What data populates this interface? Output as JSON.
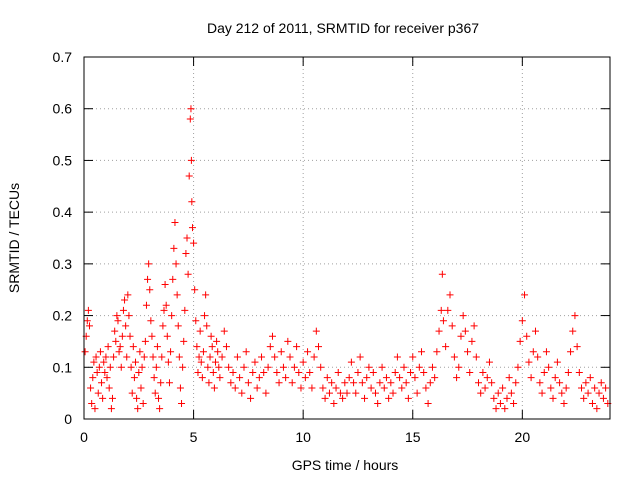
{
  "chart_data": {
    "type": "scatter",
    "title": "Day 212 of 2011, SRMTID for receiver p367",
    "xlabel": "GPS time / hours",
    "ylabel": "SRMTID / TECUs",
    "xlim": [
      0,
      24
    ],
    "ylim": [
      0,
      0.7
    ],
    "x_ticks": [
      0,
      5,
      10,
      15,
      20
    ],
    "y_ticks": [
      0,
      0.1,
      0.2,
      0.3,
      0.4,
      0.5,
      0.6,
      0.7
    ],
    "x_tick_labels": [
      "0",
      "5",
      "10",
      "15",
      "20"
    ],
    "y_tick_labels": [
      "0",
      "0.1",
      "0.2",
      "0.3",
      "0.4",
      "0.5",
      "0.6",
      "0.7"
    ],
    "grid": true,
    "marker": "+",
    "color": "#ff0000",
    "series": [
      {
        "name": "SRMTID",
        "points": [
          [
            0.05,
            0.13
          ],
          [
            0.1,
            0.16
          ],
          [
            0.15,
            0.19
          ],
          [
            0.2,
            0.21
          ],
          [
            0.25,
            0.18
          ],
          [
            0.3,
            0.06
          ],
          [
            0.35,
            0.03
          ],
          [
            0.4,
            0.08
          ],
          [
            0.45,
            0.11
          ],
          [
            0.5,
            0.02
          ],
          [
            0.55,
            0.12
          ],
          [
            0.6,
            0.09
          ],
          [
            0.65,
            0.05
          ],
          [
            0.7,
            0.1
          ],
          [
            0.75,
            0.13
          ],
          [
            0.8,
            0.07
          ],
          [
            0.85,
            0.04
          ],
          [
            0.9,
            0.11
          ],
          [
            0.95,
            0.09
          ],
          [
            1.0,
            0.12
          ],
          [
            1.05,
            0.08
          ],
          [
            1.1,
            0.14
          ],
          [
            1.15,
            0.06
          ],
          [
            1.2,
            0.1
          ],
          [
            1.25,
            0.02
          ],
          [
            1.3,
            0.04
          ],
          [
            1.35,
            0.12
          ],
          [
            1.4,
            0.17
          ],
          [
            1.45,
            0.15
          ],
          [
            1.5,
            0.2
          ],
          [
            1.55,
            0.19
          ],
          [
            1.6,
            0.13
          ],
          [
            1.65,
            0.14
          ],
          [
            1.7,
            0.1
          ],
          [
            1.75,
            0.16
          ],
          [
            1.8,
            0.21
          ],
          [
            1.85,
            0.23
          ],
          [
            1.9,
            0.18
          ],
          [
            1.95,
            0.12
          ],
          [
            2.0,
            0.24
          ],
          [
            2.05,
            0.2
          ],
          [
            2.1,
            0.16
          ],
          [
            2.15,
            0.1
          ],
          [
            2.2,
            0.05
          ],
          [
            2.25,
            0.14
          ],
          [
            2.3,
            0.08
          ],
          [
            2.35,
            0.11
          ],
          [
            2.4,
            0.04
          ],
          [
            2.45,
            0.02
          ],
          [
            2.5,
            0.09
          ],
          [
            2.55,
            0.13
          ],
          [
            2.6,
            0.06
          ],
          [
            2.65,
            0.1
          ],
          [
            2.7,
            0.03
          ],
          [
            2.75,
            0.12
          ],
          [
            2.8,
            0.15
          ],
          [
            2.85,
            0.22
          ],
          [
            2.9,
            0.27
          ],
          [
            2.95,
            0.3
          ],
          [
            3.0,
            0.25
          ],
          [
            3.05,
            0.19
          ],
          [
            3.1,
            0.16
          ],
          [
            3.15,
            0.12
          ],
          [
            3.2,
            0.08
          ],
          [
            3.25,
            0.05
          ],
          [
            3.3,
            0.1
          ],
          [
            3.35,
            0.14
          ],
          [
            3.4,
            0.04
          ],
          [
            3.45,
            0.02
          ],
          [
            3.5,
            0.07
          ],
          [
            3.55,
            0.12
          ],
          [
            3.6,
            0.18
          ],
          [
            3.65,
            0.21
          ],
          [
            3.7,
            0.26
          ],
          [
            3.75,
            0.22
          ],
          [
            3.8,
            0.16
          ],
          [
            3.85,
            0.11
          ],
          [
            3.9,
            0.07
          ],
          [
            3.95,
            0.13
          ],
          [
            4.0,
            0.2
          ],
          [
            4.05,
            0.27
          ],
          [
            4.1,
            0.33
          ],
          [
            4.15,
            0.38
          ],
          [
            4.2,
            0.3
          ],
          [
            4.25,
            0.24
          ],
          [
            4.3,
            0.18
          ],
          [
            4.35,
            0.12
          ],
          [
            4.4,
            0.06
          ],
          [
            4.45,
            0.03
          ],
          [
            4.5,
            0.1
          ],
          [
            4.55,
            0.15
          ],
          [
            4.6,
            0.21
          ],
          [
            4.65,
            0.32
          ],
          [
            4.7,
            0.35
          ],
          [
            4.75,
            0.28
          ],
          [
            4.8,
            0.47
          ],
          [
            4.85,
            0.58
          ],
          [
            4.88,
            0.6
          ],
          [
            4.9,
            0.5
          ],
          [
            4.92,
            0.42
          ],
          [
            4.95,
            0.37
          ],
          [
            5.0,
            0.34
          ],
          [
            5.05,
            0.25
          ],
          [
            5.1,
            0.19
          ],
          [
            5.15,
            0.14
          ],
          [
            5.2,
            0.09
          ],
          [
            5.25,
            0.12
          ],
          [
            5.3,
            0.17
          ],
          [
            5.35,
            0.11
          ],
          [
            5.4,
            0.08
          ],
          [
            5.45,
            0.13
          ],
          [
            5.5,
            0.2
          ],
          [
            5.55,
            0.24
          ],
          [
            5.6,
            0.18
          ],
          [
            5.65,
            0.1
          ],
          [
            5.7,
            0.07
          ],
          [
            5.75,
            0.12
          ],
          [
            5.8,
            0.16
          ],
          [
            5.85,
            0.14
          ],
          [
            5.9,
            0.09
          ],
          [
            5.95,
            0.06
          ],
          [
            6.0,
            0.11
          ],
          [
            6.05,
            0.15
          ],
          [
            6.1,
            0.13
          ],
          [
            6.15,
            0.1
          ],
          [
            6.2,
            0.08
          ],
          [
            6.3,
            0.12
          ],
          [
            6.4,
            0.17
          ],
          [
            6.5,
            0.14
          ],
          [
            6.6,
            0.1
          ],
          [
            6.7,
            0.07
          ],
          [
            6.8,
            0.09
          ],
          [
            6.9,
            0.06
          ],
          [
            7.0,
            0.12
          ],
          [
            7.1,
            0.08
          ],
          [
            7.2,
            0.05
          ],
          [
            7.3,
            0.1
          ],
          [
            7.4,
            0.13
          ],
          [
            7.5,
            0.07
          ],
          [
            7.6,
            0.04
          ],
          [
            7.7,
            0.09
          ],
          [
            7.8,
            0.11
          ],
          [
            7.9,
            0.06
          ],
          [
            8.0,
            0.08
          ],
          [
            8.1,
            0.12
          ],
          [
            8.2,
            0.09
          ],
          [
            8.3,
            0.05
          ],
          [
            8.4,
            0.1
          ],
          [
            8.5,
            0.14
          ],
          [
            8.6,
            0.16
          ],
          [
            8.7,
            0.12
          ],
          [
            8.8,
            0.09
          ],
          [
            8.9,
            0.07
          ],
          [
            9.0,
            0.13
          ],
          [
            9.1,
            0.1
          ],
          [
            9.2,
            0.08
          ],
          [
            9.3,
            0.15
          ],
          [
            9.4,
            0.12
          ],
          [
            9.5,
            0.07
          ],
          [
            9.6,
            0.1
          ],
          [
            9.7,
            0.14
          ],
          [
            9.8,
            0.09
          ],
          [
            9.9,
            0.06
          ],
          [
            10.0,
            0.11
          ],
          [
            10.1,
            0.08
          ],
          [
            10.2,
            0.13
          ],
          [
            10.3,
            0.09
          ],
          [
            10.4,
            0.06
          ],
          [
            10.5,
            0.12
          ],
          [
            10.6,
            0.17
          ],
          [
            10.7,
            0.14
          ],
          [
            10.8,
            0.1
          ],
          [
            10.9,
            0.06
          ],
          [
            11.0,
            0.04
          ],
          [
            11.1,
            0.08
          ],
          [
            11.2,
            0.05
          ],
          [
            11.3,
            0.07
          ],
          [
            11.4,
            0.03
          ],
          [
            11.5,
            0.06
          ],
          [
            11.6,
            0.09
          ],
          [
            11.7,
            0.05
          ],
          [
            11.8,
            0.04
          ],
          [
            11.9,
            0.07
          ],
          [
            12.0,
            0.05
          ],
          [
            12.1,
            0.08
          ],
          [
            12.2,
            0.11
          ],
          [
            12.3,
            0.07
          ],
          [
            12.4,
            0.05
          ],
          [
            12.5,
            0.09
          ],
          [
            12.6,
            0.12
          ],
          [
            12.7,
            0.07
          ],
          [
            12.8,
            0.04
          ],
          [
            12.9,
            0.08
          ],
          [
            13.0,
            0.1
          ],
          [
            13.1,
            0.06
          ],
          [
            13.2,
            0.09
          ],
          [
            13.3,
            0.05
          ],
          [
            13.4,
            0.03
          ],
          [
            13.5,
            0.07
          ],
          [
            13.6,
            0.1
          ],
          [
            13.7,
            0.06
          ],
          [
            13.8,
            0.08
          ],
          [
            13.9,
            0.04
          ],
          [
            14.0,
            0.07
          ],
          [
            14.1,
            0.05
          ],
          [
            14.2,
            0.09
          ],
          [
            14.3,
            0.12
          ],
          [
            14.4,
            0.08
          ],
          [
            14.5,
            0.06
          ],
          [
            14.6,
            0.1
          ],
          [
            14.7,
            0.07
          ],
          [
            14.8,
            0.04
          ],
          [
            14.9,
            0.09
          ],
          [
            15.0,
            0.12
          ],
          [
            15.1,
            0.08
          ],
          [
            15.2,
            0.05
          ],
          [
            15.3,
            0.1
          ],
          [
            15.4,
            0.13
          ],
          [
            15.5,
            0.09
          ],
          [
            15.6,
            0.06
          ],
          [
            15.7,
            0.03
          ],
          [
            15.8,
            0.07
          ],
          [
            15.9,
            0.1
          ],
          [
            16.0,
            0.08
          ],
          [
            16.1,
            0.13
          ],
          [
            16.2,
            0.17
          ],
          [
            16.3,
            0.21
          ],
          [
            16.35,
            0.28
          ],
          [
            16.4,
            0.19
          ],
          [
            16.5,
            0.14
          ],
          [
            16.6,
            0.21
          ],
          [
            16.7,
            0.24
          ],
          [
            16.8,
            0.18
          ],
          [
            16.9,
            0.12
          ],
          [
            17.0,
            0.08
          ],
          [
            17.1,
            0.1
          ],
          [
            17.2,
            0.16
          ],
          [
            17.3,
            0.2
          ],
          [
            17.4,
            0.17
          ],
          [
            17.5,
            0.13
          ],
          [
            17.6,
            0.09
          ],
          [
            17.7,
            0.15
          ],
          [
            17.8,
            0.18
          ],
          [
            17.9,
            0.12
          ],
          [
            18.0,
            0.07
          ],
          [
            18.1,
            0.05
          ],
          [
            18.2,
            0.09
          ],
          [
            18.3,
            0.06
          ],
          [
            18.4,
            0.08
          ],
          [
            18.5,
            0.11
          ],
          [
            18.6,
            0.07
          ],
          [
            18.7,
            0.04
          ],
          [
            18.8,
            0.02
          ],
          [
            18.9,
            0.05
          ],
          [
            19.0,
            0.03
          ],
          [
            19.1,
            0.06
          ],
          [
            19.2,
            0.02
          ],
          [
            19.3,
            0.04
          ],
          [
            19.4,
            0.08
          ],
          [
            19.5,
            0.05
          ],
          [
            19.6,
            0.03
          ],
          [
            19.7,
            0.07
          ],
          [
            19.8,
            0.1
          ],
          [
            19.9,
            0.15
          ],
          [
            20.0,
            0.19
          ],
          [
            20.1,
            0.24
          ],
          [
            20.2,
            0.16
          ],
          [
            20.3,
            0.11
          ],
          [
            20.4,
            0.08
          ],
          [
            20.5,
            0.13
          ],
          [
            20.6,
            0.17
          ],
          [
            20.7,
            0.12
          ],
          [
            20.8,
            0.07
          ],
          [
            20.9,
            0.05
          ],
          [
            21.0,
            0.09
          ],
          [
            21.1,
            0.13
          ],
          [
            21.2,
            0.1
          ],
          [
            21.3,
            0.06
          ],
          [
            21.4,
            0.04
          ],
          [
            21.5,
            0.08
          ],
          [
            21.6,
            0.11
          ],
          [
            21.7,
            0.07
          ],
          [
            21.8,
            0.05
          ],
          [
            21.9,
            0.03
          ],
          [
            22.0,
            0.06
          ],
          [
            22.1,
            0.09
          ],
          [
            22.2,
            0.13
          ],
          [
            22.3,
            0.17
          ],
          [
            22.4,
            0.2
          ],
          [
            22.5,
            0.14
          ],
          [
            22.6,
            0.09
          ],
          [
            22.7,
            0.06
          ],
          [
            22.8,
            0.04
          ],
          [
            22.9,
            0.07
          ],
          [
            23.0,
            0.05
          ],
          [
            23.1,
            0.08
          ],
          [
            23.2,
            0.03
          ],
          [
            23.3,
            0.06
          ],
          [
            23.4,
            0.02
          ],
          [
            23.5,
            0.05
          ],
          [
            23.6,
            0.07
          ],
          [
            23.7,
            0.04
          ],
          [
            23.8,
            0.06
          ],
          [
            23.9,
            0.03
          ]
        ]
      }
    ]
  }
}
